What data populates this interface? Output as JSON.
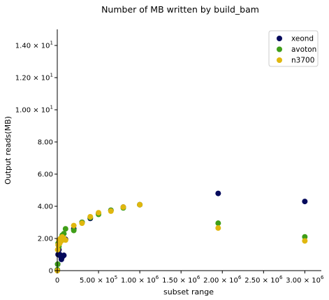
{
  "chart_data": {
    "type": "scatter",
    "title": "Number of MB written by build_bam",
    "xlabel": "subset range",
    "ylabel": "Output reads(MB)",
    "xlim": [
      0,
      3200000
    ],
    "ylim": [
      0,
      15
    ],
    "x_ticks": [
      {
        "value": 0,
        "mant": "0",
        "exp": ""
      },
      {
        "value": 500000,
        "mant": "5.00 × 10",
        "exp": "5"
      },
      {
        "value": 1000000,
        "mant": "1.00 × 10",
        "exp": "6"
      },
      {
        "value": 1500000,
        "mant": "1.50 × 10",
        "exp": "6"
      },
      {
        "value": 2000000,
        "mant": "2.00 × 10",
        "exp": "6"
      },
      {
        "value": 2500000,
        "mant": "2.50 × 10",
        "exp": "6"
      },
      {
        "value": 3000000,
        "mant": "3.00 × 10",
        "exp": "6"
      }
    ],
    "y_ticks": [
      {
        "value": 0,
        "mant": "0",
        "exp": ""
      },
      {
        "value": 2,
        "mant": "2.00",
        "exp": ""
      },
      {
        "value": 4,
        "mant": "4.00",
        "exp": ""
      },
      {
        "value": 6,
        "mant": "6.00",
        "exp": ""
      },
      {
        "value": 8,
        "mant": "8.00",
        "exp": ""
      },
      {
        "value": 10,
        "mant": "1.00 × 10",
        "exp": "1"
      },
      {
        "value": 12,
        "mant": "1.20 × 10",
        "exp": "1"
      },
      {
        "value": 14,
        "mant": "1.40 × 10",
        "exp": "1"
      }
    ],
    "legend_position": "top-right",
    "grid": false,
    "series": [
      {
        "name": "xeond",
        "color": "#050a5c",
        "points": [
          [
            1000,
            0.05
          ],
          [
            5000,
            0.4
          ],
          [
            10000,
            1.0
          ],
          [
            20000,
            1.3
          ],
          [
            30000,
            1.0
          ],
          [
            40000,
            0.9
          ],
          [
            50000,
            0.7
          ],
          [
            60000,
            0.85
          ],
          [
            80000,
            0.95
          ],
          [
            100000,
            1.95
          ],
          [
            200000,
            2.6
          ],
          [
            300000,
            3.0
          ],
          [
            400000,
            3.25
          ],
          [
            500000,
            3.55
          ],
          [
            650000,
            3.75
          ],
          [
            800000,
            3.95
          ],
          [
            1000000,
            4.1
          ],
          [
            1950000,
            4.8
          ],
          [
            3000000,
            4.3
          ]
        ]
      },
      {
        "name": "avoton",
        "color": "#3f9e18",
        "points": [
          [
            1000,
            0.05
          ],
          [
            5000,
            0.4
          ],
          [
            10000,
            1.7
          ],
          [
            20000,
            1.5
          ],
          [
            30000,
            1.8
          ],
          [
            40000,
            1.95
          ],
          [
            50000,
            2.05
          ],
          [
            60000,
            2.2
          ],
          [
            80000,
            2.3
          ],
          [
            100000,
            2.6
          ],
          [
            200000,
            2.5
          ],
          [
            300000,
            3.0
          ],
          [
            400000,
            3.3
          ],
          [
            500000,
            3.5
          ],
          [
            650000,
            3.75
          ],
          [
            800000,
            3.9
          ],
          [
            1000000,
            4.1
          ],
          [
            1950000,
            2.95
          ],
          [
            3000000,
            2.1
          ]
        ]
      },
      {
        "name": "n3700",
        "color": "#e0b70e",
        "points": [
          [
            1000,
            0.0
          ],
          [
            5000,
            1.3
          ],
          [
            10000,
            1.6
          ],
          [
            20000,
            1.9
          ],
          [
            30000,
            1.7
          ],
          [
            40000,
            2.0
          ],
          [
            50000,
            1.85
          ],
          [
            60000,
            2.1
          ],
          [
            80000,
            2.0
          ],
          [
            100000,
            1.9
          ],
          [
            200000,
            2.8
          ],
          [
            300000,
            2.95
          ],
          [
            400000,
            3.35
          ],
          [
            500000,
            3.6
          ],
          [
            650000,
            3.7
          ],
          [
            800000,
            3.95
          ],
          [
            1000000,
            4.1
          ],
          [
            1950000,
            2.65
          ],
          [
            3000000,
            1.85
          ]
        ]
      }
    ]
  }
}
